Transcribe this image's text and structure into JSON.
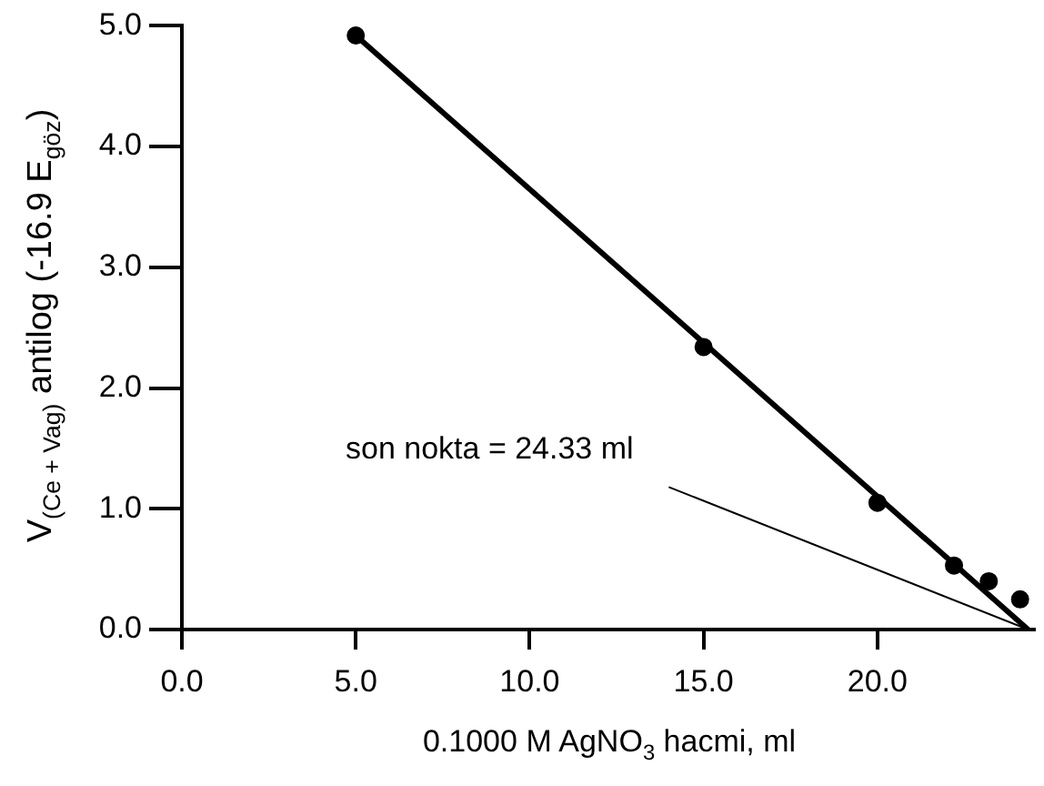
{
  "chart_data": {
    "type": "scatter",
    "xlabel": "0.1000 M AgNO$_{3}$ hacmi, ml",
    "ylabel": "V$_{(Ce + Vag)}$ antilog (-16.9 E$_{göz}$)",
    "series": [
      {
        "type": "scatter",
        "color": "#000000",
        "x": [
          5,
          15,
          20,
          22.2,
          23.2,
          24.1
        ],
        "values": [
          4.92,
          2.34,
          1.05,
          0.53,
          0.4,
          0.25
        ]
      },
      {
        "type": "line",
        "color": "#000000",
        "x": [
          5,
          24.33
        ],
        "values": [
          4.92,
          0
        ],
        "marker": "none"
      },
      {
        "type": "line",
        "color": "#000000",
        "x": [
          14,
          24.33
        ],
        "values": [
          1.18,
          0
        ],
        "marker": "none"
      }
    ],
    "annotations": [
      "son nokta = 24.33 ml"
    ],
    "xlim": [
      0,
      24.5
    ],
    "xticks": [
      {
        "value": 0,
        "label": "0.0"
      },
      {
        "value": 5,
        "label": "5.0"
      },
      {
        "value": 10,
        "label": "10.0"
      },
      {
        "value": 15,
        "label": "15.0"
      },
      {
        "value": 20,
        "label": "20.0"
      }
    ],
    "ylim": [
      0,
      5
    ],
    "yticks": [
      {
        "value": 0,
        "label": "0.0"
      },
      {
        "value": 1,
        "label": "1.0"
      },
      {
        "value": 2,
        "label": "2.0"
      },
      {
        "value": 3,
        "label": "3.0"
      },
      {
        "value": 4,
        "label": "4.0"
      },
      {
        "value": 5,
        "label": "5.0"
      }
    ],
    "grid": false,
    "legend": false,
    "marker": "circle"
  }
}
